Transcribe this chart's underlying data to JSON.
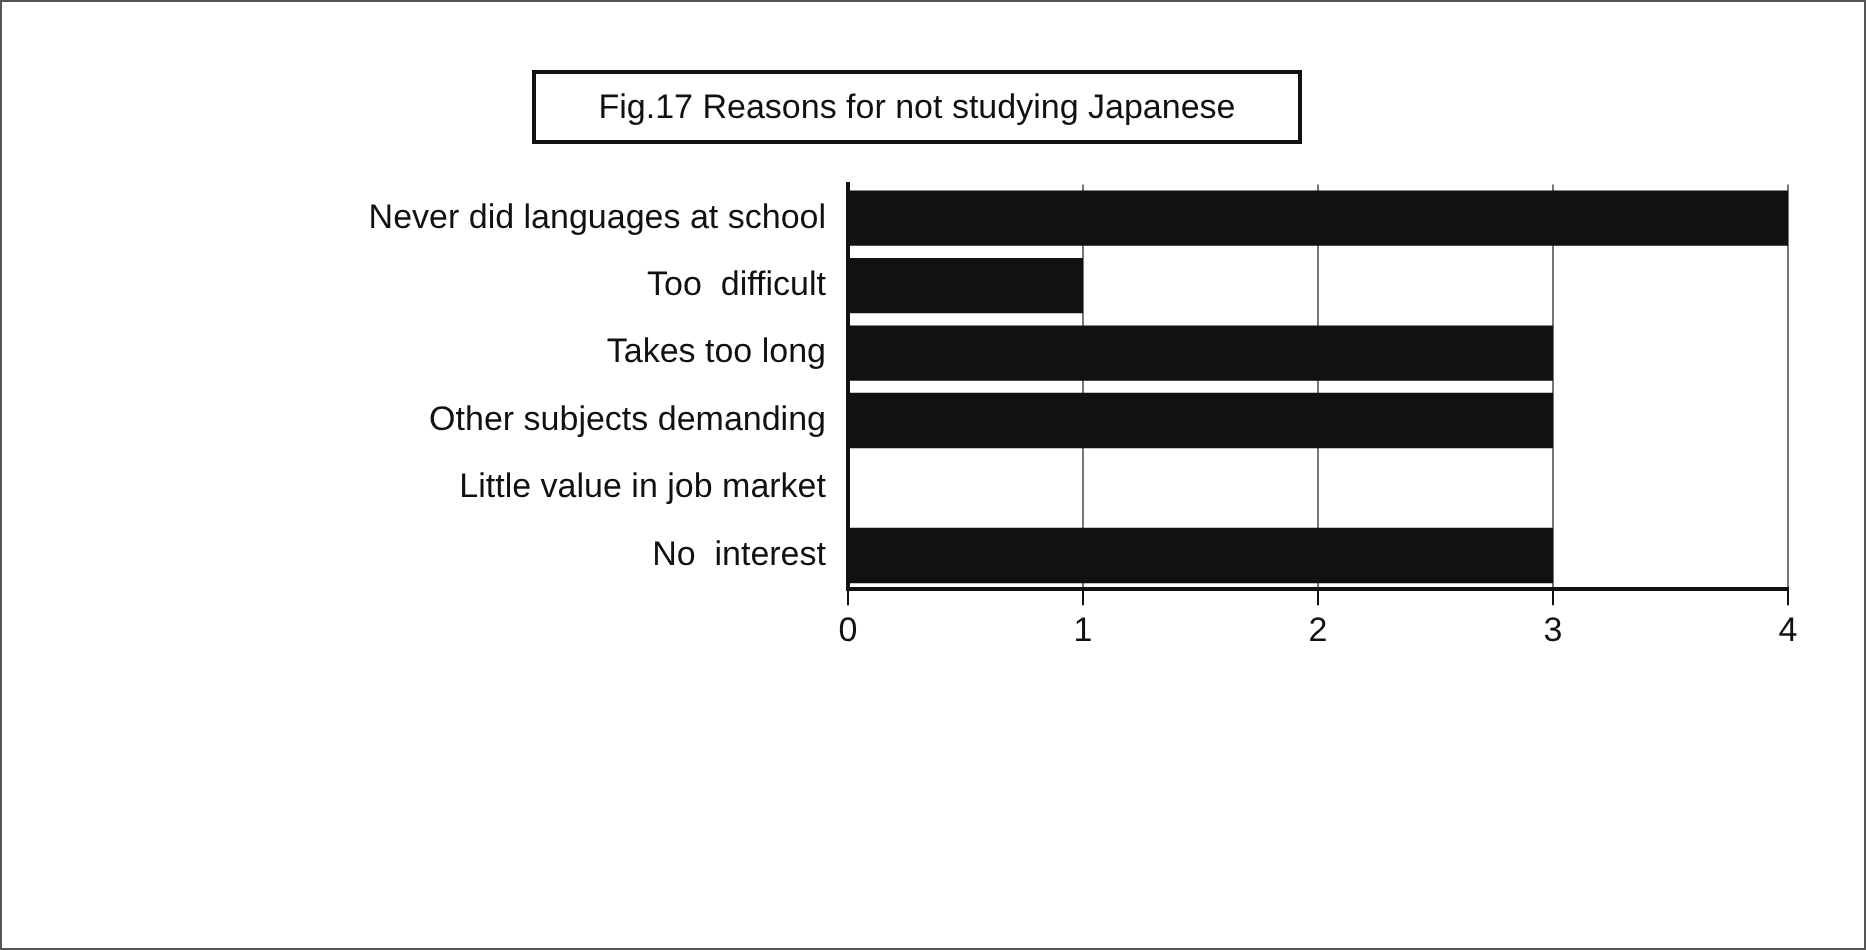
{
  "chart_data": {
    "type": "bar",
    "orientation": "horizontal",
    "title": "Fig.17  Reasons for not studying Japanese",
    "categories": [
      "Never did languages at school",
      "Too  difficult",
      "Takes too long",
      "Other subjects demanding",
      "Little value in job market",
      "No  interest"
    ],
    "values": [
      4,
      1,
      3,
      3,
      0,
      3
    ],
    "color": "#111111",
    "xlim": [
      0,
      4
    ],
    "xticks": [
      0,
      1,
      2,
      3,
      4
    ],
    "grid": "x",
    "legend": false
  }
}
